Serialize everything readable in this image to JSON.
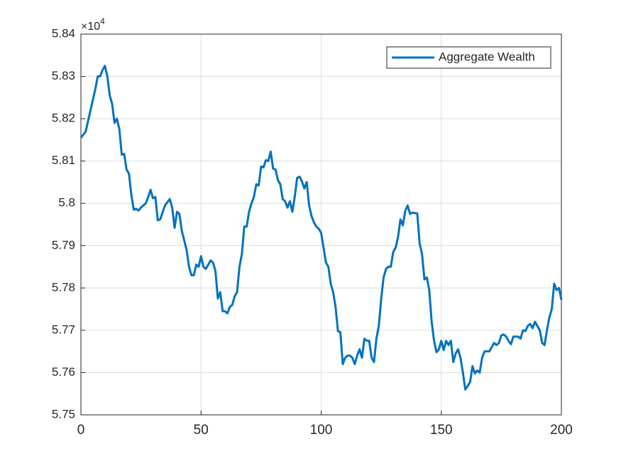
{
  "chart_data": {
    "type": "line",
    "y_multiplier": {
      "base": "×10",
      "exponent": "4"
    },
    "x": [
      0,
      2,
      4,
      6,
      7,
      8,
      9,
      10,
      11,
      12,
      13,
      14,
      15,
      16,
      17,
      18,
      19,
      20,
      21,
      22,
      23,
      24,
      25,
      27,
      28,
      29,
      30,
      31,
      32,
      33,
      35,
      37,
      38,
      39,
      40,
      41,
      42,
      44,
      45,
      46,
      47,
      48,
      49,
      50,
      51,
      52,
      53,
      54,
      55,
      56,
      57,
      58,
      59,
      60,
      61,
      62,
      63,
      64,
      65,
      66,
      67,
      68,
      69,
      70,
      71,
      72,
      73,
      74,
      75,
      76,
      77,
      78,
      79,
      80,
      81,
      82,
      83,
      84,
      85,
      86,
      87,
      88,
      89,
      90,
      91,
      92,
      93,
      94,
      95,
      96,
      97,
      98,
      99,
      100,
      101,
      102,
      103,
      104,
      105,
      106,
      107,
      108,
      109,
      110,
      111,
      112,
      113,
      114,
      115,
      116,
      117,
      118,
      119,
      120,
      121,
      122,
      123,
      124,
      125,
      126,
      127,
      128,
      129,
      130,
      131,
      132,
      133,
      134,
      135,
      136,
      137,
      138,
      140,
      141,
      142,
      143,
      144,
      145,
      146,
      147,
      148,
      149,
      150,
      151,
      152,
      153,
      154,
      155,
      156,
      157,
      158,
      159,
      160,
      161,
      162,
      163,
      164,
      165,
      166,
      167,
      168,
      169,
      170,
      171,
      172,
      173,
      174,
      175,
      176,
      177,
      178,
      179,
      180,
      181,
      182,
      183,
      184,
      185,
      186,
      187,
      188,
      189,
      190,
      191,
      192,
      193,
      194,
      195,
      196,
      197,
      198,
      199,
      200
    ],
    "series": [
      {
        "name": "Aggregate Wealth",
        "color": "#0072bd",
        "values": [
          5.8155,
          5.817,
          5.822,
          5.827,
          5.83,
          5.83,
          5.8315,
          5.8325,
          5.83,
          5.8255,
          5.8235,
          5.819,
          5.82,
          5.8175,
          5.8115,
          5.8117,
          5.808,
          5.807,
          5.802,
          5.7985,
          5.7987,
          5.7983,
          5.799,
          5.8,
          5.8015,
          5.8032,
          5.8012,
          5.8015,
          5.796,
          5.7962,
          5.7995,
          5.801,
          5.799,
          5.7942,
          5.798,
          5.7975,
          5.7935,
          5.789,
          5.785,
          5.783,
          5.783,
          5.7855,
          5.785,
          5.7875,
          5.785,
          5.7845,
          5.7855,
          5.7865,
          5.786,
          5.784,
          5.7775,
          5.779,
          5.7745,
          5.7745,
          5.774,
          5.7755,
          5.776,
          5.778,
          5.779,
          5.785,
          5.788,
          5.7945,
          5.7945,
          5.798,
          5.8,
          5.8015,
          5.8045,
          5.8042,
          5.8087,
          5.8085,
          5.8102,
          5.81,
          5.8122,
          5.8082,
          5.808,
          5.8055,
          5.8045,
          5.801,
          5.8005,
          5.799,
          5.8005,
          5.798,
          5.8015,
          5.806,
          5.8063,
          5.8052,
          5.8035,
          5.805,
          5.7995,
          5.797,
          5.7955,
          5.7945,
          5.794,
          5.793,
          5.7895,
          5.786,
          5.785,
          5.781,
          5.779,
          5.7755,
          5.7698,
          5.7695,
          5.762,
          5.7635,
          5.764,
          5.764,
          5.7635,
          5.762,
          5.764,
          5.7655,
          5.7635,
          5.768,
          5.7675,
          5.7675,
          5.7635,
          5.7625,
          5.768,
          5.771,
          5.7775,
          5.7825,
          5.7845,
          5.785,
          5.785,
          5.7885,
          5.7895,
          5.792,
          5.7962,
          5.7948,
          5.7982,
          5.7995,
          5.7975,
          5.7978,
          5.7976,
          5.7905,
          5.788,
          5.782,
          5.7825,
          5.7795,
          5.772,
          5.7675,
          5.7648,
          5.7655,
          5.7675,
          5.7653,
          5.7675,
          5.7665,
          5.7675,
          5.7625,
          5.7645,
          5.7655,
          5.7635,
          5.76,
          5.756,
          5.7568,
          5.7578,
          5.7615,
          5.7598,
          5.7605,
          5.76,
          5.7635,
          5.765,
          5.765,
          5.765,
          5.766,
          5.767,
          5.7665,
          5.767,
          5.7688,
          5.769,
          5.7685,
          5.7675,
          5.7667,
          5.7685,
          5.7685,
          5.7685,
          5.768,
          5.77,
          5.7698,
          5.771,
          5.7715,
          5.7705,
          5.772,
          5.771,
          5.77,
          5.767,
          5.7665,
          5.77,
          5.773,
          5.775,
          5.781,
          5.7795,
          5.78,
          5.7772
        ]
      }
    ],
    "xlim": [
      0,
      200
    ],
    "xticks": [
      0,
      50,
      100,
      150,
      200
    ],
    "ylim": [
      5.75,
      5.84
    ],
    "yticks": [
      5.75,
      5.76,
      5.77,
      5.78,
      5.79,
      5.8,
      5.81,
      5.82,
      5.83,
      5.84
    ],
    "grid": true,
    "legend": "northeast"
  }
}
